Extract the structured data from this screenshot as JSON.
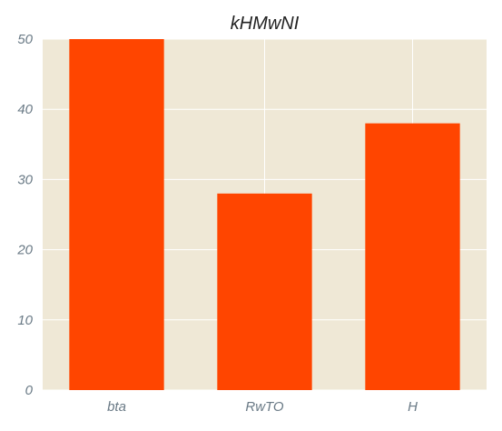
{
  "chart_data": {
    "type": "bar",
    "title": "kHMwNI",
    "xlabel": "",
    "ylabel": "",
    "categories": [
      "bta",
      "RwTO",
      "H"
    ],
    "values": [
      50,
      28,
      38
    ],
    "ylim": [
      0,
      50
    ],
    "yticks": [
      0,
      10,
      20,
      30,
      40,
      50
    ],
    "grid": true,
    "legend": "none",
    "colors": {
      "bar": "#ff4500",
      "plot_background": "#efe8d6",
      "grid": "#ffffff"
    }
  }
}
